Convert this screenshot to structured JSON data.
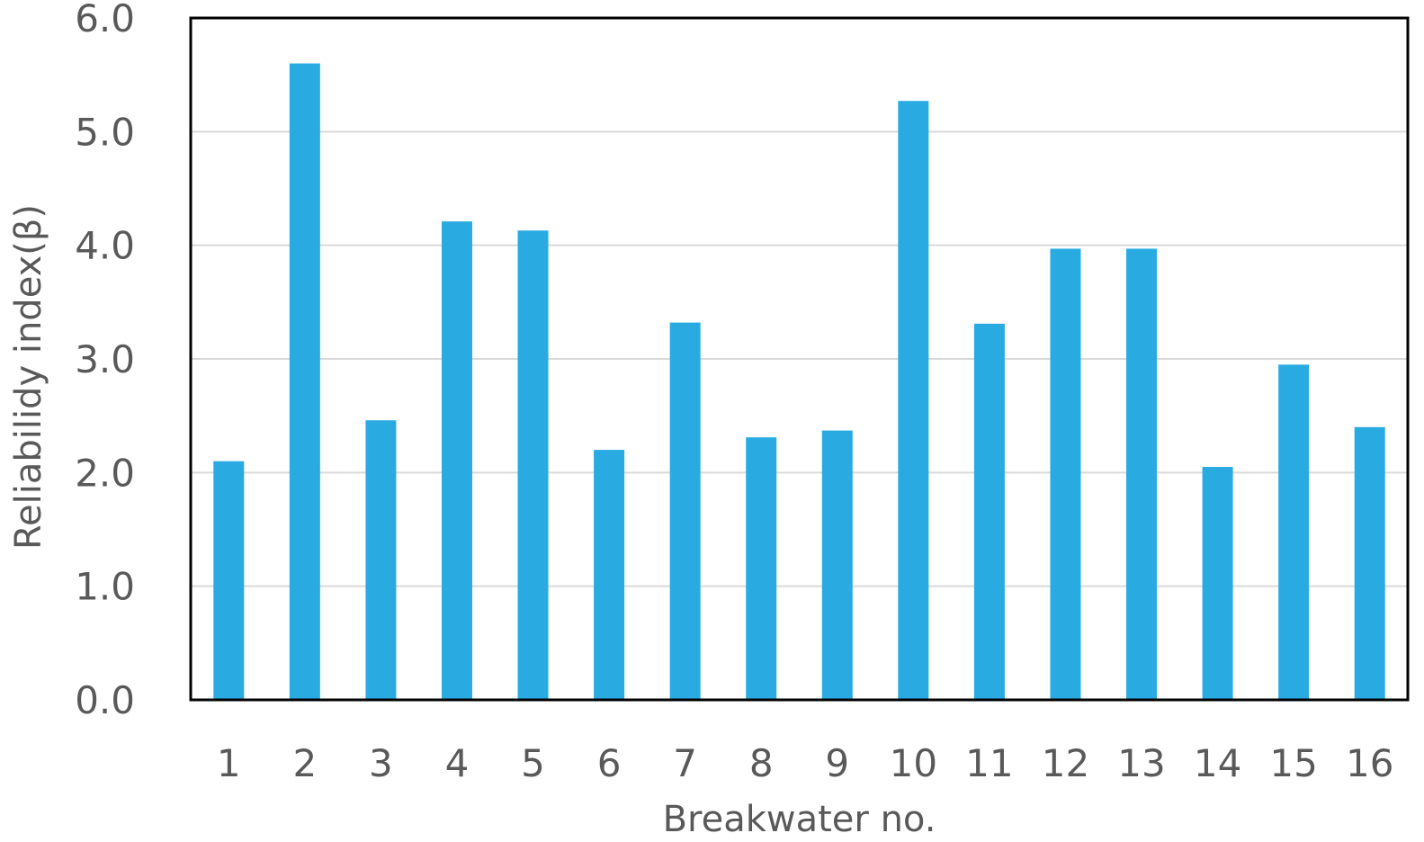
{
  "chart_data": {
    "type": "bar",
    "xlabel": "Breakwater no.",
    "ylabel": "Reliabilidy index(β)",
    "categories": [
      "1",
      "2",
      "3",
      "4",
      "5",
      "6",
      "7",
      "8",
      "9",
      "10",
      "11",
      "12",
      "13",
      "14",
      "15",
      "16"
    ],
    "values": [
      2.1,
      5.6,
      2.46,
      4.21,
      4.13,
      2.2,
      3.32,
      2.31,
      2.37,
      5.27,
      3.31,
      3.97,
      3.97,
      2.05,
      2.95,
      2.4
    ],
    "ylim": [
      0,
      6
    ],
    "yticks": [
      "0.0",
      "1.0",
      "2.0",
      "3.0",
      "4.0",
      "5.0",
      "6.0"
    ],
    "grid": true,
    "legend": "none",
    "colors": {
      "bar": "#29abe2",
      "grid": "#d9d9d9",
      "axis": "#000000",
      "text": "#595959"
    }
  }
}
